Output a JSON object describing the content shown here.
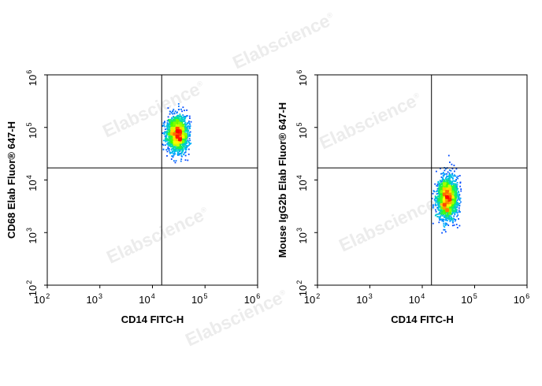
{
  "watermark": {
    "text": "Elabscience",
    "mark": "®"
  },
  "chart_data": [
    {
      "type": "scatter",
      "title": "",
      "xlabel": "CD14 FITC-H",
      "ylabel": "CD68 Elab Fluor® 647-H",
      "x_scale": "log",
      "y_scale": "log",
      "xlim": [
        100,
        1000000
      ],
      "ylim": [
        100,
        1000000
      ],
      "x_ticks": [
        {
          "base": "10",
          "exp": "2"
        },
        {
          "base": "10",
          "exp": "3"
        },
        {
          "base": "10",
          "exp": "4"
        },
        {
          "base": "10",
          "exp": "5"
        },
        {
          "base": "10",
          "exp": "6"
        }
      ],
      "y_ticks": [
        {
          "base": "10",
          "exp": "2"
        },
        {
          "base": "10",
          "exp": "3"
        },
        {
          "base": "10",
          "exp": "4"
        },
        {
          "base": "10",
          "exp": "5"
        },
        {
          "base": "10",
          "exp": "6"
        }
      ],
      "quadrant_gate": {
        "x": 15000,
        "y": 17000
      },
      "population": {
        "center": {
          "x": 30000,
          "y": 75000
        },
        "spread_decades": {
          "x": 0.1,
          "y": 0.17
        },
        "x_range": [
          15000,
          55000
        ],
        "y_range": [
          18000,
          320000
        ],
        "n_events": 1900,
        "density_colormap": [
          "#0000ff",
          "#00b0ff",
          "#00e0a0",
          "#40ff00",
          "#ffff00",
          "#ff8000",
          "#ff0000"
        ]
      },
      "grid": false,
      "legend": "none"
    },
    {
      "type": "scatter",
      "title": "",
      "xlabel": "CD14 FITC-H",
      "ylabel": "Mouse IgG2b Elab Fluor® 647-H",
      "x_scale": "log",
      "y_scale": "log",
      "xlim": [
        100,
        1000000
      ],
      "ylim": [
        100,
        1000000
      ],
      "x_ticks": [
        {
          "base": "10",
          "exp": "2"
        },
        {
          "base": "10",
          "exp": "3"
        },
        {
          "base": "10",
          "exp": "4"
        },
        {
          "base": "10",
          "exp": "5"
        },
        {
          "base": "10",
          "exp": "6"
        }
      ],
      "y_ticks": [
        {
          "base": "10",
          "exp": "2"
        },
        {
          "base": "10",
          "exp": "3"
        },
        {
          "base": "10",
          "exp": "4"
        },
        {
          "base": "10",
          "exp": "5"
        },
        {
          "base": "10",
          "exp": "6"
        }
      ],
      "quadrant_gate": {
        "x": 15000,
        "y": 17000
      },
      "population": {
        "center": {
          "x": 30000,
          "y": 4500
        },
        "spread_decades": {
          "x": 0.1,
          "y": 0.2
        },
        "x_range": [
          15000,
          55000
        ],
        "y_range": [
          600,
          40000
        ],
        "n_events": 1900,
        "density_colormap": [
          "#0000ff",
          "#00b0ff",
          "#00e0a0",
          "#40ff00",
          "#ffff00",
          "#ff8000",
          "#ff0000"
        ]
      },
      "grid": false,
      "legend": "none"
    }
  ]
}
